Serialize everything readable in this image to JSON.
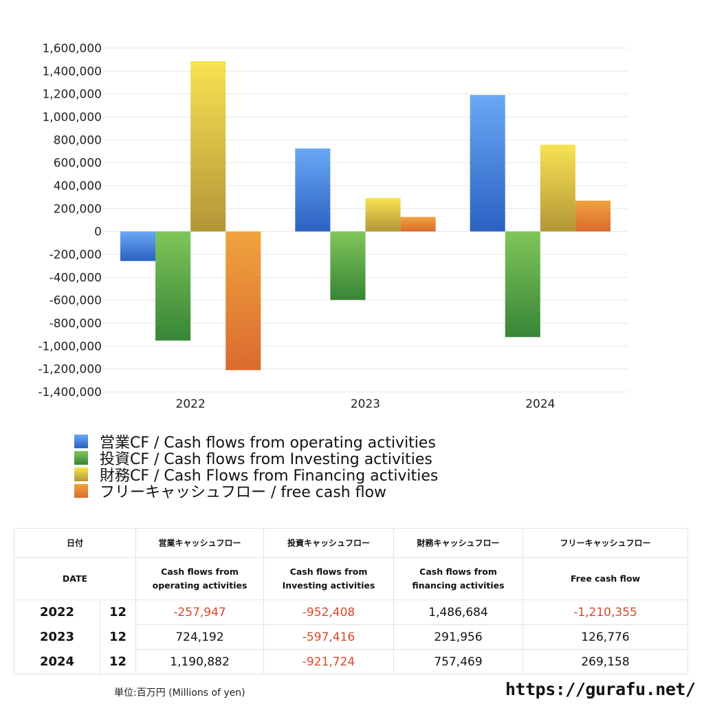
{
  "chart_data": {
    "type": "bar",
    "categories": [
      "2022",
      "2023",
      "2024"
    ],
    "series": [
      {
        "name": "営業CF / Cash flows from operating activities",
        "values": [
          -257947,
          724192,
          1190882
        ],
        "color_top": "#6aa8f5",
        "color_bottom": "#2a62c2"
      },
      {
        "name": "投資CF / Cash flows from Investing activities",
        "values": [
          -952408,
          -597416,
          -921724
        ],
        "color_top": "#80c65a",
        "color_bottom": "#378536"
      },
      {
        "name": "財務CF / Cash Flows from Financing activities",
        "values": [
          1486684,
          291956,
          757469
        ],
        "color_top": "#f7e352",
        "color_bottom": "#b39638"
      },
      {
        "name": "フリーキャッシュフロー / free cash flow",
        "values": [
          -1210355,
          126776,
          269158
        ],
        "color_top": "#f0a43e",
        "color_bottom": "#d96a2e"
      }
    ],
    "ylim": [
      -1400000,
      1600000
    ],
    "yticks": [
      1600000,
      1400000,
      1200000,
      1000000,
      800000,
      600000,
      400000,
      200000,
      0,
      -200000,
      -400000,
      -600000,
      -800000,
      -1000000,
      -1200000,
      -1400000
    ],
    "ytick_labels": [
      "1,600,000",
      "1,400,000",
      "1,200,000",
      "1,000,000",
      "800,000",
      "600,000",
      "400,000",
      "200,000",
      "0",
      "-200,000",
      "-400,000",
      "-600,000",
      "-800,000",
      "-1,000,000",
      "-1,200,000",
      "-1,400,000"
    ],
    "grid": true,
    "legend": "bottom-left",
    "title": "",
    "xlabel": "",
    "ylabel": ""
  },
  "table": {
    "headers_jp": [
      "日付",
      "営業キャッシュフロー",
      "投資キャッシュフロー",
      "財務キャッシュフロー",
      "フリーキャッシュフロー"
    ],
    "headers_en": [
      "DATE",
      "Cash flows from\noperating activities",
      "Cash flows from\nInvesting activities",
      "Cash flows from\nfinancing activities",
      "Free cash flow"
    ],
    "rows": [
      {
        "year": "2022",
        "month": "12",
        "values": [
          "-257,947",
          "-952,408",
          "1,486,684",
          "-1,210,355"
        ]
      },
      {
        "year": "2023",
        "month": "12",
        "values": [
          "724,192",
          "-597,416",
          "291,956",
          "126,776"
        ]
      },
      {
        "year": "2024",
        "month": "12",
        "values": [
          "1,190,882",
          "-921,724",
          "757,469",
          "269,158"
        ]
      }
    ]
  },
  "footer": {
    "unit": "単位:百万円 (Millions of yen)",
    "url": "https://gurafu.net/"
  },
  "colors": {
    "negative": "#d9472b"
  }
}
